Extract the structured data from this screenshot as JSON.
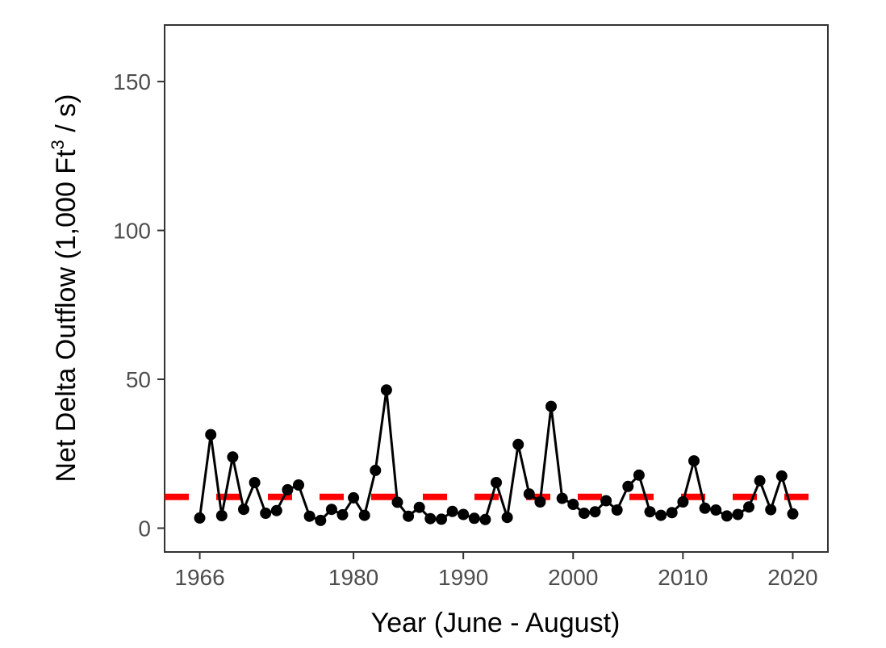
{
  "chart_data": {
    "type": "line",
    "xlabel": "Year (June - August)",
    "ylabel_main": "Net Delta Outflow (1,000 Ft",
    "ylabel_sup": "3",
    "ylabel_end": " / s)",
    "xlim": [
      1962.8,
      2023.2
    ],
    "ylim": [
      -8,
      169
    ],
    "x_ticks": [
      1966,
      1980,
      1990,
      2000,
      2010,
      2020
    ],
    "y_ticks": [
      0,
      50,
      100,
      150
    ],
    "grid": false,
    "series": [
      {
        "x": [
          1966,
          1967,
          1968,
          1969,
          1970,
          1971,
          1972,
          1973,
          1974,
          1975,
          1976,
          1977,
          1978,
          1979,
          1980,
          1981,
          1982,
          1983,
          1984,
          1985,
          1986,
          1987,
          1988,
          1989,
          1990,
          1991,
          1992,
          1993,
          1994,
          1995,
          1996,
          1997,
          1998,
          1999,
          2000,
          2001,
          2002,
          2003,
          2004,
          2005,
          2006,
          2007,
          2008,
          2009,
          2010,
          2011,
          2012,
          2013,
          2014,
          2015,
          2016,
          2017,
          2018,
          2019,
          2020
        ],
        "values": [
          3.4,
          31.4,
          4.2,
          23.9,
          6.3,
          15.3,
          5.0,
          5.9,
          12.9,
          14.5,
          4.0,
          2.6,
          6.3,
          4.5,
          10.2,
          4.3,
          19.4,
          46.4,
          8.7,
          4.0,
          7.0,
          3.2,
          3.0,
          5.6,
          4.6,
          3.3,
          2.9,
          15.3,
          3.6,
          28.1,
          11.5,
          8.8,
          40.9,
          10.0,
          8.0,
          5.0,
          5.5,
          9.2,
          6.1,
          14.0,
          17.8,
          5.5,
          4.3,
          5.2,
          8.8,
          22.6,
          6.7,
          6.1,
          4.1,
          4.6,
          7.1,
          15.9,
          6.2,
          17.5,
          4.8
        ],
        "color": "#000000"
      }
    ],
    "reference_line": {
      "value": 10.5,
      "style": "dashed",
      "color": "#ff0000"
    }
  }
}
